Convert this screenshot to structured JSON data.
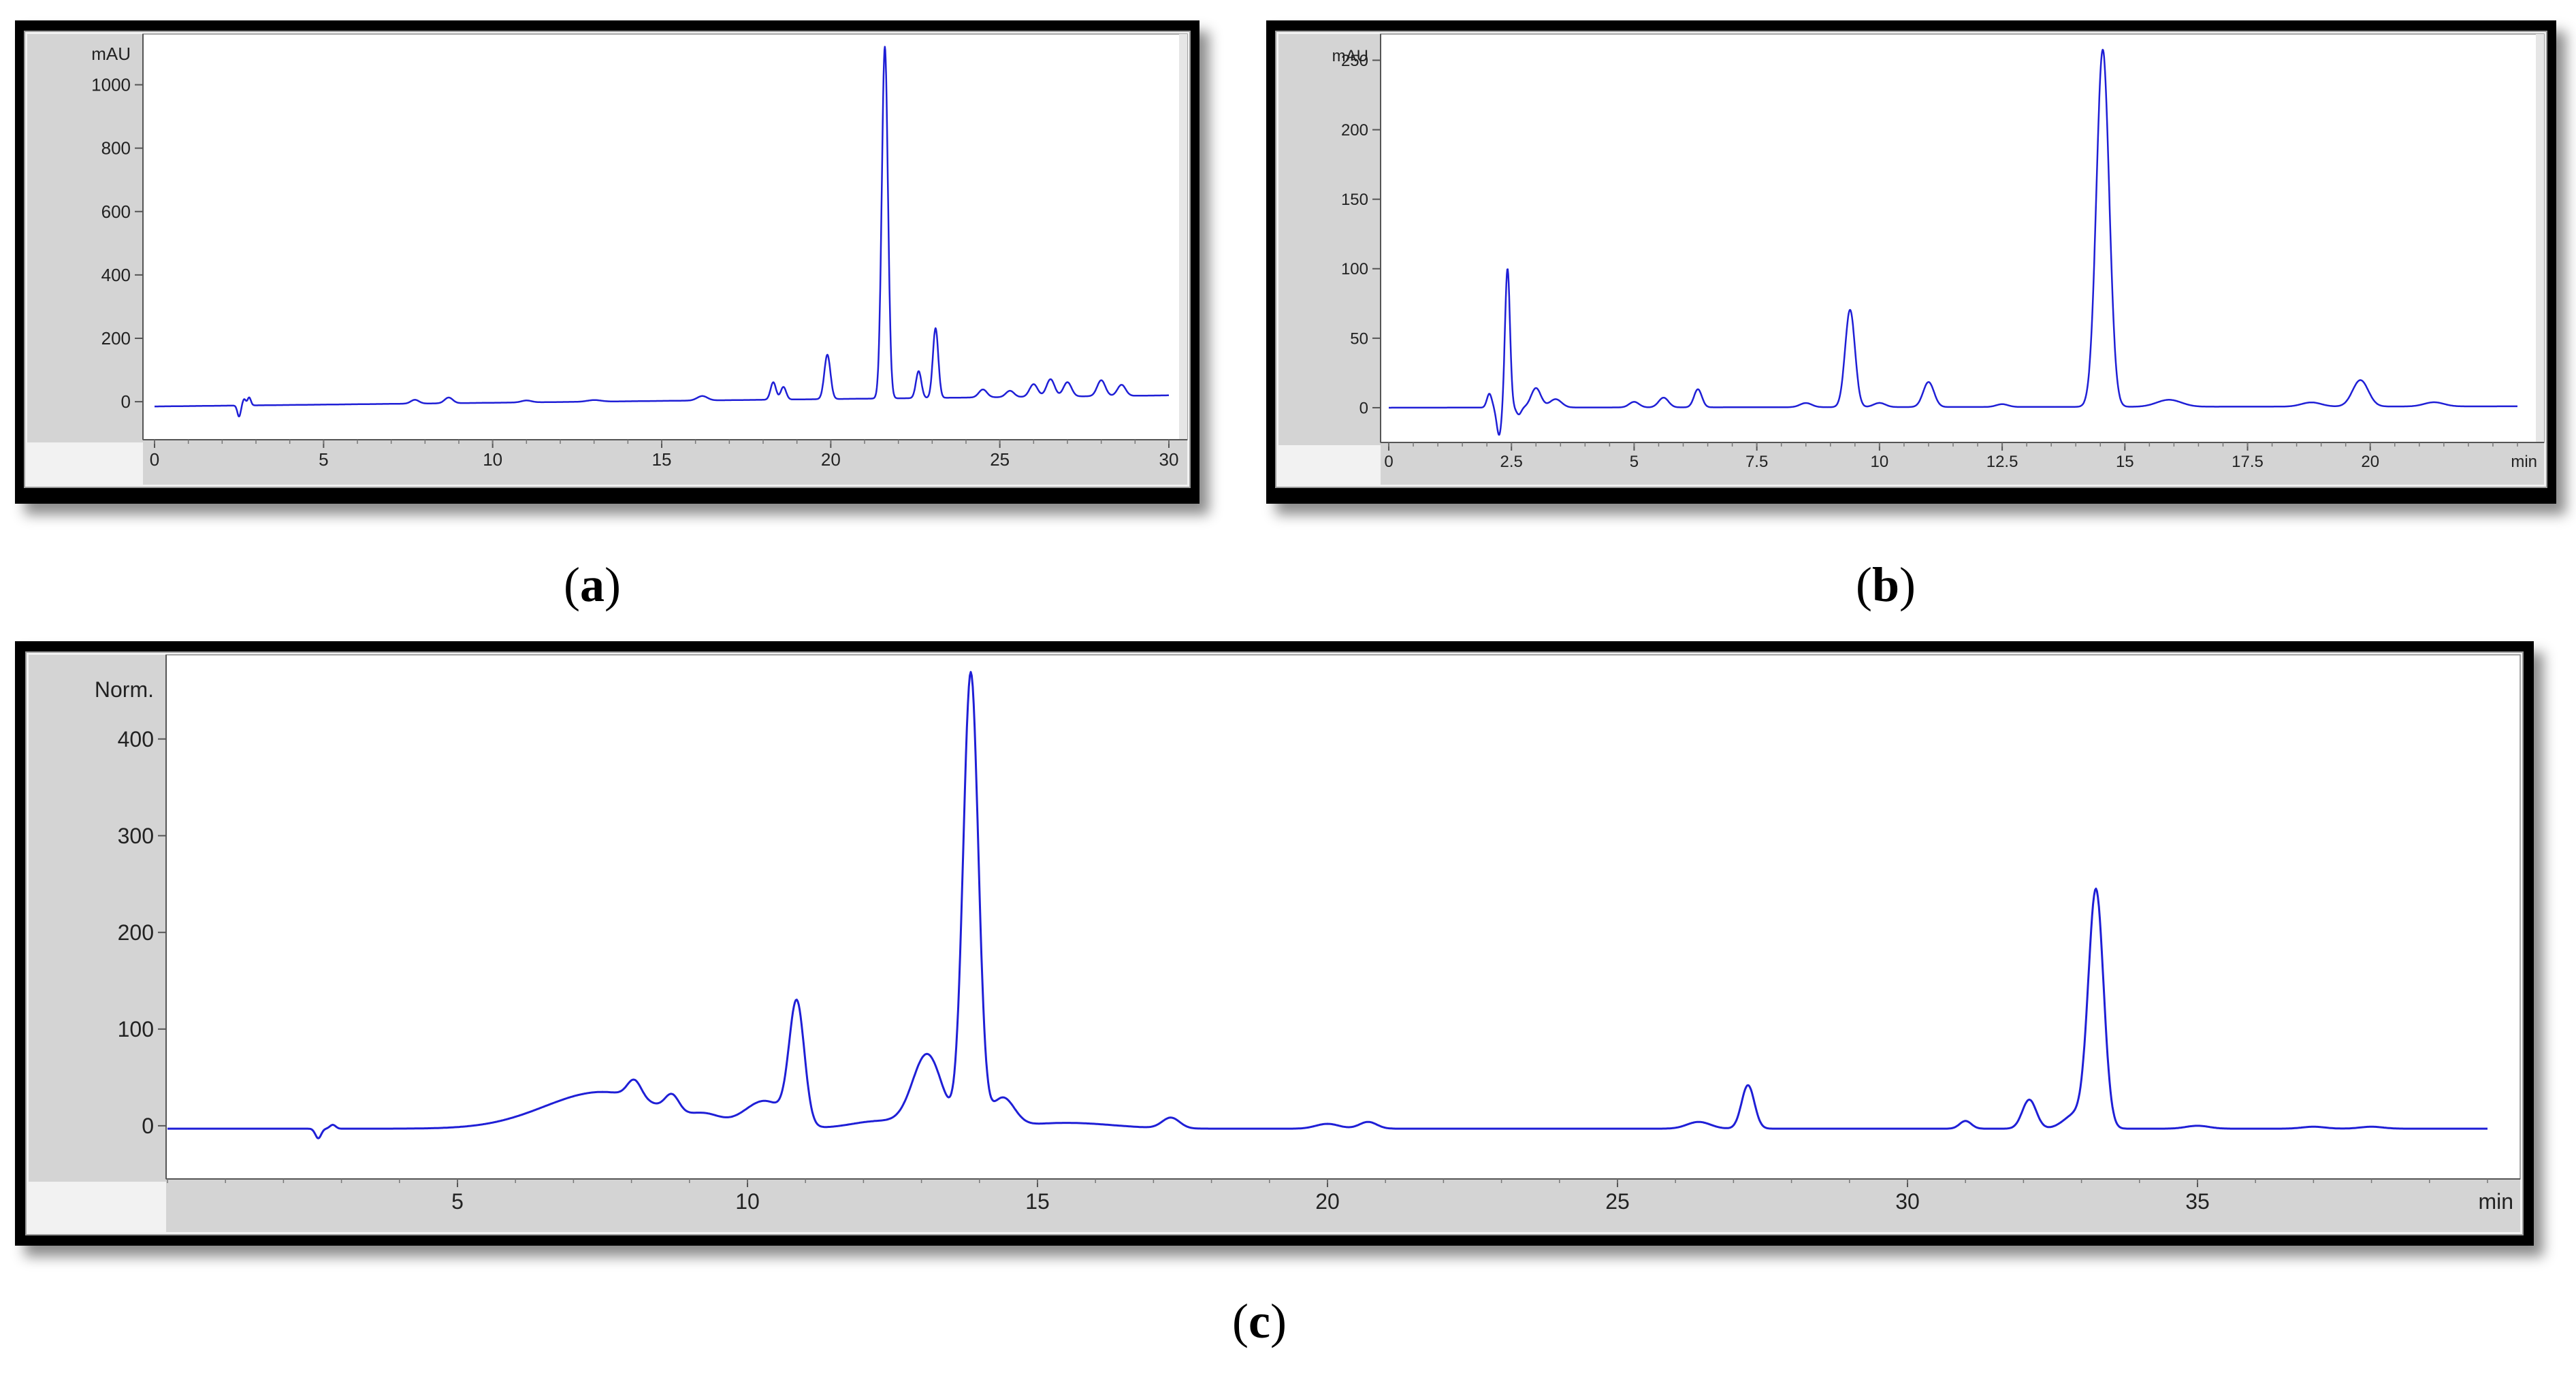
{
  "panels": [
    {
      "id": "a",
      "label_open": "(",
      "label_letter": "a",
      "label_close": ")"
    },
    {
      "id": "b",
      "label_open": "(",
      "label_letter": "b",
      "label_close": ")"
    },
    {
      "id": "c",
      "label_open": "(",
      "label_letter": "c",
      "label_close": ")"
    }
  ],
  "chart_data": [
    {
      "panel": "a",
      "type": "line",
      "title": "",
      "xlabel": "",
      "ylabel": "mAU",
      "xlim": [
        0,
        30
      ],
      "ylim": [
        -120,
        1130
      ],
      "xticks": [
        0,
        5,
        10,
        15,
        20,
        25,
        30
      ],
      "yticks": [
        0,
        200,
        400,
        600,
        800,
        1000
      ],
      "grid": false,
      "line_color": "#1f1fd6",
      "baseline_start": -15,
      "baseline_end": 20,
      "peaks": [
        [
          2.5,
          -35,
          0.05
        ],
        [
          2.65,
          20,
          0.05
        ],
        [
          2.8,
          25,
          0.05
        ],
        [
          7.7,
          12,
          0.12
        ],
        [
          8.7,
          18,
          0.12
        ],
        [
          11.0,
          6,
          0.15
        ],
        [
          13.0,
          5,
          0.2
        ],
        [
          16.2,
          14,
          0.15
        ],
        [
          18.3,
          55,
          0.08
        ],
        [
          18.6,
          40,
          0.08
        ],
        [
          19.9,
          140,
          0.09
        ],
        [
          21.6,
          1110,
          0.09
        ],
        [
          22.6,
          85,
          0.08
        ],
        [
          23.1,
          220,
          0.08
        ],
        [
          24.5,
          25,
          0.12
        ],
        [
          25.3,
          20,
          0.12
        ],
        [
          26.0,
          40,
          0.12
        ],
        [
          26.5,
          55,
          0.12
        ],
        [
          27.0,
          45,
          0.12
        ],
        [
          28.0,
          50,
          0.12
        ],
        [
          28.6,
          35,
          0.12
        ]
      ]
    },
    {
      "panel": "b",
      "type": "line",
      "title": "",
      "xlabel": "min",
      "ylabel": "mAU",
      "xlim": [
        0,
        23
      ],
      "ylim": [
        -25,
        262
      ],
      "xticks": [
        0,
        2.5,
        5,
        7.5,
        10,
        12.5,
        15,
        17.5,
        20
      ],
      "xtick_labels": [
        "0",
        "2.5",
        "5",
        "7.5",
        "10",
        "12.5",
        "15",
        "17.5",
        "20"
      ],
      "yticks": [
        0,
        50,
        100,
        150,
        200,
        250
      ],
      "grid": false,
      "line_color": "#1f1fd6",
      "baseline_start": 0,
      "baseline_end": 1,
      "peaks": [
        [
          2.05,
          10,
          0.05
        ],
        [
          2.25,
          -20,
          0.05
        ],
        [
          2.42,
          100,
          0.05
        ],
        [
          2.65,
          -5,
          0.05
        ],
        [
          3.0,
          14,
          0.1
        ],
        [
          3.4,
          6,
          0.12
        ],
        [
          5.0,
          4,
          0.1
        ],
        [
          5.6,
          7,
          0.1
        ],
        [
          6.3,
          13,
          0.08
        ],
        [
          8.5,
          3,
          0.12
        ],
        [
          9.4,
          70,
          0.1
        ],
        [
          10.0,
          3,
          0.12
        ],
        [
          11.0,
          18,
          0.11
        ],
        [
          12.5,
          2,
          0.12
        ],
        [
          14.55,
          257,
          0.13
        ],
        [
          15.9,
          5,
          0.25
        ],
        [
          18.8,
          3,
          0.2
        ],
        [
          19.8,
          19,
          0.16
        ],
        [
          21.3,
          3,
          0.2
        ]
      ]
    },
    {
      "panel": "c",
      "type": "line",
      "title": "",
      "xlabel": "min",
      "ylabel": "Norm.",
      "xlim": [
        0,
        40
      ],
      "ylim": [
        -55,
        480
      ],
      "xticks": [
        5,
        10,
        15,
        20,
        25,
        30,
        35
      ],
      "yticks": [
        0,
        100,
        200,
        300,
        400
      ],
      "grid": false,
      "line_color": "#1f1fd6",
      "baseline_start": -3,
      "baseline_end": -3,
      "peaks": [
        [
          2.6,
          -10,
          0.05
        ],
        [
          2.85,
          4,
          0.05
        ],
        [
          7.5,
          38,
          1.0
        ],
        [
          8.05,
          18,
          0.12
        ],
        [
          8.7,
          17,
          0.12
        ],
        [
          9.3,
          8,
          0.25
        ],
        [
          10.3,
          28,
          0.35
        ],
        [
          10.85,
          125,
          0.13
        ],
        [
          12.3,
          8,
          0.5
        ],
        [
          13.1,
          75,
          0.25
        ],
        [
          13.85,
          470,
          0.13
        ],
        [
          14.4,
          30,
          0.2
        ],
        [
          15.5,
          6,
          0.8
        ],
        [
          17.3,
          11,
          0.15
        ],
        [
          20.0,
          5,
          0.2
        ],
        [
          20.7,
          7,
          0.15
        ],
        [
          26.4,
          7,
          0.2
        ],
        [
          27.25,
          45,
          0.11
        ],
        [
          31.0,
          8,
          0.1
        ],
        [
          32.1,
          30,
          0.12
        ],
        [
          32.9,
          15,
          0.2
        ],
        [
          33.25,
          245,
          0.13
        ],
        [
          35.0,
          3,
          0.2
        ],
        [
          37.0,
          2,
          0.2
        ],
        [
          38.0,
          2,
          0.2
        ]
      ]
    }
  ]
}
